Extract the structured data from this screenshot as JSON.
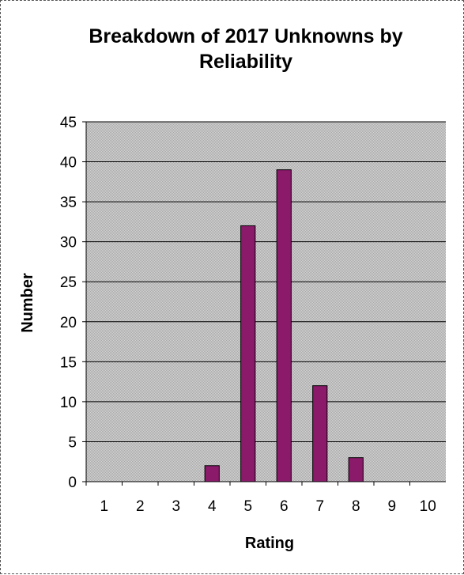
{
  "chart_data": {
    "type": "bar",
    "title_lines": [
      "Breakdown of 2017 Unknowns by",
      "Reliability"
    ],
    "xlabel": "Rating",
    "ylabel": "Number",
    "categories": [
      "1",
      "2",
      "3",
      "4",
      "5",
      "6",
      "7",
      "8",
      "9",
      "10"
    ],
    "values": [
      0,
      0,
      0,
      2,
      32,
      39,
      12,
      3,
      0,
      0
    ],
    "ylim": [
      0,
      45
    ],
    "yticks": [
      0,
      5,
      10,
      15,
      20,
      25,
      30,
      35,
      40,
      45
    ],
    "grid": true,
    "legend": "none",
    "colors": {
      "bar_fill": "#8B1A6B",
      "bar_stroke": "#000000",
      "plot_background": "#C0C0C0",
      "gridline": "#000000"
    }
  }
}
